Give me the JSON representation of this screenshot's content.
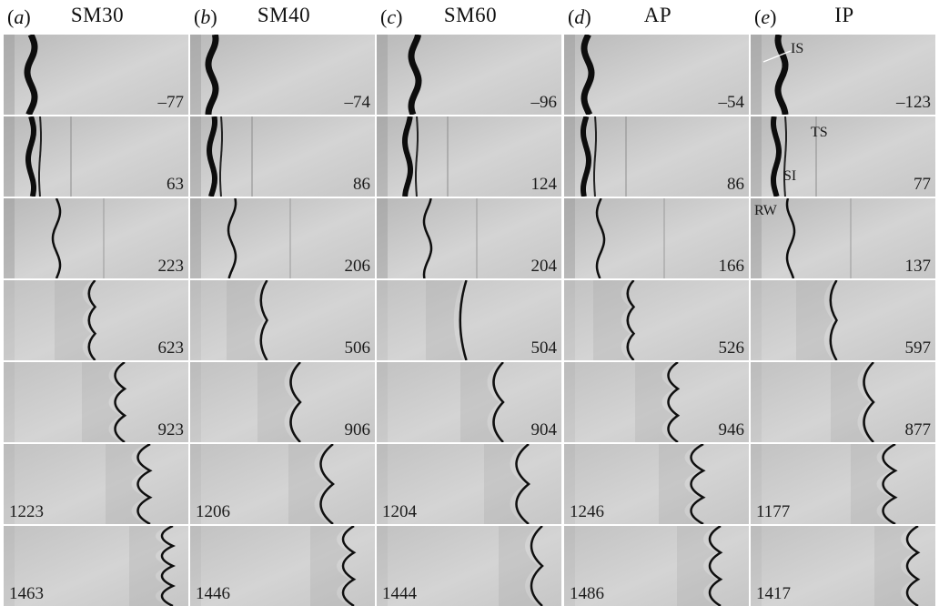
{
  "columns": [
    {
      "tag": "a",
      "name": "SM30"
    },
    {
      "tag": "b",
      "name": "SM40"
    },
    {
      "tag": "c",
      "name": "SM60"
    },
    {
      "tag": "d",
      "name": "AP"
    },
    {
      "tag": "e",
      "name": "IP"
    }
  ],
  "panel_times": [
    [
      "–77",
      "63",
      "223",
      "623",
      "923",
      "1223",
      "1463"
    ],
    [
      "–74",
      "86",
      "206",
      "506",
      "906",
      "1206",
      "1446"
    ],
    [
      "–96",
      "124",
      "204",
      "504",
      "904",
      "1204",
      "1444"
    ],
    [
      "–54",
      "86",
      "166",
      "526",
      "946",
      "1246",
      "1486"
    ],
    [
      "–123",
      "77",
      "137",
      "597",
      "877",
      "1177",
      "1417"
    ]
  ],
  "annotations": {
    "is": "IS",
    "ts": "TS",
    "si": "SI",
    "rw": "RW"
  }
}
